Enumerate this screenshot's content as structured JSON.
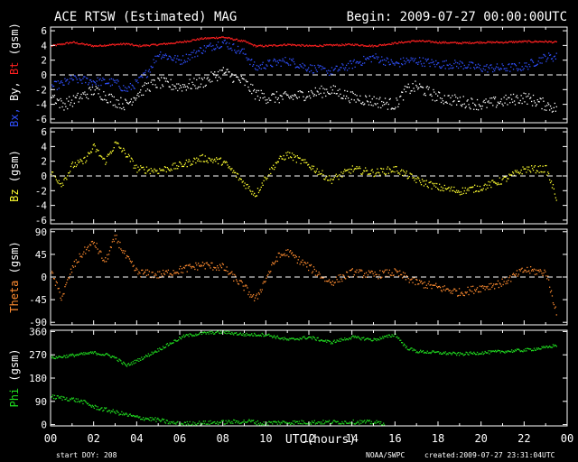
{
  "header": {
    "title": "ACE RTSW (Estimated) MAG",
    "begin": "Begin: 2009-07-27 00:00:00UTC"
  },
  "footer": {
    "start_doy": "start DOY:  208",
    "credit": "NOAA/SWPC",
    "created": "created:2009-07-27 23:31:04UTC"
  },
  "colors": {
    "bx": "#3050ff",
    "by": "#ffffff",
    "bt": "#ff2020",
    "bz": "#ffff30",
    "theta": "#ff8c30",
    "phi": "#20e020",
    "axis": "#ffffff",
    "background": "#000000"
  },
  "chart_data": [
    {
      "type": "scatter",
      "name": "Bx-By-Bt",
      "ylabel_parts": [
        {
          "text": "Bx,",
          "color": "#3050ff"
        },
        {
          "text": " By,",
          "color": "#ffffff"
        },
        {
          "text": " Bt",
          "color": "#ff2020"
        },
        {
          "text": "  (gsm)",
          "color": "#ffffff"
        }
      ],
      "ylim": [
        -6.5,
        6.5
      ],
      "yticks": [
        -6,
        -4,
        -2,
        0,
        2,
        4,
        6
      ],
      "zero_line": true,
      "series": [
        {
          "name": "Bt",
          "color": "#ff2020",
          "noise": 0.12,
          "x": [
            0,
            1,
            2,
            3,
            3.5,
            4,
            5,
            6,
            7,
            8,
            9,
            9.5,
            10,
            11,
            12,
            13,
            14,
            15,
            16,
            17,
            18,
            19,
            20,
            21,
            22,
            23,
            23.5
          ],
          "y": [
            4.0,
            4.5,
            4.0,
            4.2,
            4.3,
            4.0,
            4.2,
            4.5,
            5.0,
            5.2,
            4.6,
            4.0,
            4.0,
            4.2,
            4.0,
            4.1,
            4.2,
            4.0,
            4.4,
            4.7,
            4.5,
            4.4,
            4.5,
            4.5,
            4.6,
            4.6,
            4.5
          ]
        },
        {
          "name": "Bx",
          "color": "#3050ff",
          "noise": 0.6,
          "x": [
            0,
            0.5,
            1,
            2,
            3,
            3.5,
            4,
            4.5,
            5,
            6,
            7,
            8,
            9,
            9.5,
            10,
            11,
            12,
            13,
            14,
            15,
            16,
            16.5,
            17,
            18,
            19,
            20,
            21,
            22,
            23,
            23.5
          ],
          "y": [
            -1.5,
            -1.2,
            -0.5,
            -0.8,
            -1.0,
            -2.0,
            -1.0,
            0.5,
            3.0,
            2.0,
            3.5,
            4.5,
            3.0,
            1.0,
            1.5,
            2.0,
            1.0,
            0.5,
            1.5,
            2.5,
            1.5,
            2.0,
            2.0,
            1.5,
            1.5,
            1.0,
            1.0,
            1.2,
            2.5,
            2.5
          ]
        },
        {
          "name": "By",
          "color": "#ffffff",
          "noise": 0.8,
          "x": [
            0,
            0.5,
            1,
            2,
            3,
            3.5,
            4,
            4.5,
            5,
            6,
            7,
            8,
            9,
            9.5,
            10,
            11,
            12,
            13,
            14,
            15,
            16,
            16.5,
            17,
            18,
            19,
            20,
            21,
            22,
            23,
            23.5
          ],
          "y": [
            -2.5,
            -4.0,
            -3.5,
            -2.0,
            -3.5,
            -4.0,
            -2.5,
            -1.5,
            -1.0,
            -1.5,
            -1.0,
            0.5,
            -1.0,
            -2.5,
            -3.0,
            -3.0,
            -2.5,
            -2.0,
            -3.0,
            -3.5,
            -4.0,
            -2.0,
            -1.5,
            -3.0,
            -3.5,
            -4.0,
            -3.5,
            -3.0,
            -4.0,
            -4.5
          ]
        }
      ]
    },
    {
      "type": "scatter",
      "name": "Bz",
      "ylabel_parts": [
        {
          "text": "Bz",
          "color": "#ffff30"
        },
        {
          "text": "  (gsm)",
          "color": "#ffffff"
        }
      ],
      "ylim": [
        -6.5,
        6.5
      ],
      "yticks": [
        -6,
        -4,
        -2,
        0,
        2,
        4,
        6
      ],
      "zero_line": true,
      "series": [
        {
          "name": "Bz",
          "color": "#ffff30",
          "noise": 0.5,
          "x": [
            0,
            0.5,
            1,
            1.5,
            2,
            2.5,
            3,
            3.5,
            4,
            5,
            6,
            7,
            8,
            9,
            9.5,
            10,
            10.5,
            11,
            12,
            13,
            14,
            15,
            16,
            17,
            18,
            19,
            20,
            21,
            22,
            23,
            23.5
          ],
          "y": [
            0.5,
            -1.0,
            1.5,
            2.0,
            4.0,
            2.0,
            4.5,
            3.0,
            1.0,
            0.8,
            1.5,
            2.5,
            2.0,
            -1.0,
            -2.5,
            0,
            2.0,
            3.0,
            1.5,
            -0.5,
            1.0,
            0.5,
            1.0,
            -0.5,
            -1.5,
            -2.0,
            -1.5,
            -0.5,
            1.0,
            1.0,
            -3.0
          ]
        }
      ]
    },
    {
      "type": "scatter",
      "name": "Theta",
      "ylabel_parts": [
        {
          "text": "Theta",
          "color": "#ff8c30"
        },
        {
          "text": "  (gsm)",
          "color": "#ffffff"
        }
      ],
      "ylim": [
        -95,
        95
      ],
      "yticks": [
        -90,
        -45,
        0,
        45,
        90
      ],
      "zero_line": true,
      "series": [
        {
          "name": "Theta",
          "color": "#ff8c30",
          "noise": 8,
          "x": [
            0,
            0.5,
            1,
            1.5,
            2,
            2.5,
            3,
            3.5,
            4,
            5,
            6,
            7,
            8,
            9,
            9.5,
            10,
            10.5,
            11,
            12,
            13,
            14,
            15,
            16,
            17,
            18,
            19,
            20,
            21,
            22,
            23,
            23.3,
            23.5
          ],
          "y": [
            10,
            -40,
            20,
            50,
            70,
            30,
            80,
            40,
            10,
            5,
            15,
            25,
            20,
            -20,
            -45,
            0,
            40,
            50,
            20,
            -10,
            10,
            5,
            10,
            -10,
            -20,
            -30,
            -20,
            -10,
            15,
            10,
            -40,
            -70
          ]
        }
      ]
    },
    {
      "type": "scatter",
      "name": "Phi",
      "ylabel_parts": [
        {
          "text": "Phi",
          "color": "#20e020"
        },
        {
          "text": "  (gsm)",
          "color": "#ffffff"
        }
      ],
      "ylim": [
        -5,
        365
      ],
      "yticks": [
        0,
        90,
        180,
        270,
        360
      ],
      "zero_line": false,
      "series": [
        {
          "name": "Phi",
          "color": "#20e020",
          "noise": 6,
          "x": [
            0,
            1,
            2,
            2.7,
            3,
            3.5,
            4,
            4.5,
            6.2,
            7,
            8,
            9,
            10,
            11,
            12,
            13,
            14,
            15,
            16,
            16.5,
            17,
            18,
            19,
            20,
            21,
            22,
            23,
            23.5
          ],
          "y": [
            260,
            270,
            280,
            270,
            260,
            230,
            250,
            270,
            345,
            355,
            360,
            350,
            350,
            330,
            340,
            320,
            340,
            330,
            350,
            300,
            285,
            280,
            275,
            280,
            285,
            290,
            300,
            310
          ]
        },
        {
          "name": "Phi-low",
          "color": "#20e020",
          "noise": 8,
          "x": [
            0,
            1,
            1.5,
            2,
            2.5,
            3,
            3.5,
            4,
            4.5,
            5,
            5.5,
            6,
            9.3,
            9.8,
            10.3,
            14.5,
            15.5
          ],
          "y": [
            110,
            100,
            90,
            70,
            60,
            50,
            40,
            30,
            25,
            20,
            10,
            5,
            15,
            5,
            10,
            12,
            8
          ]
        }
      ]
    }
  ],
  "xaxis": {
    "label": "UTC(hours)",
    "xlim": [
      0,
      24
    ],
    "ticks": [
      "00",
      "02",
      "04",
      "06",
      "08",
      "10",
      "12",
      "14",
      "16",
      "18",
      "20",
      "22",
      "00"
    ]
  }
}
